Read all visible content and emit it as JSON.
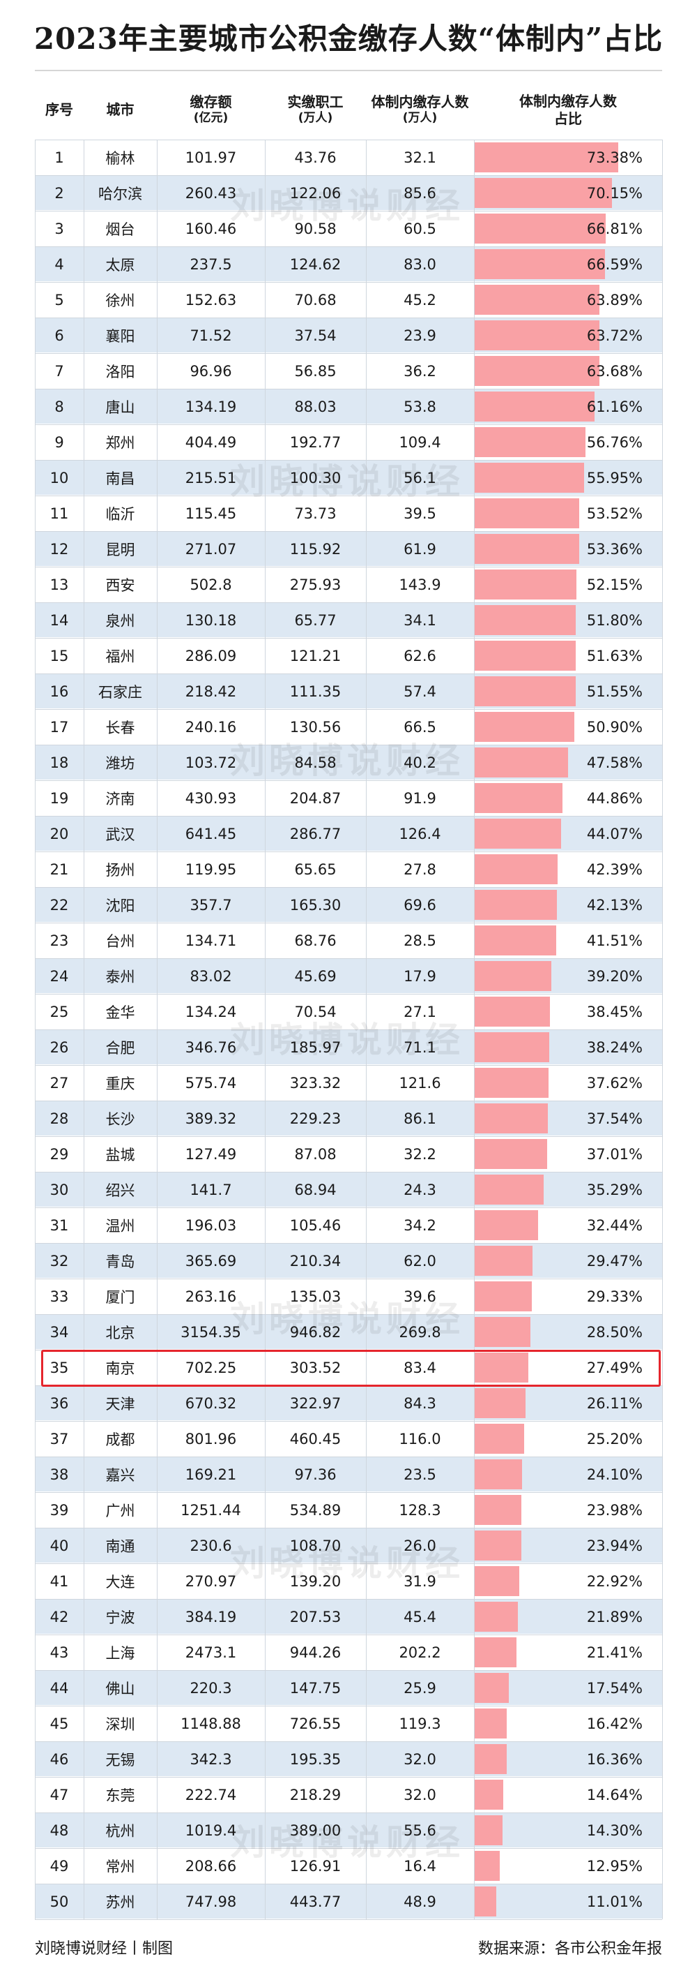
{
  "title": "2023年主要城市公积金缴存人数“体制内”占比",
  "watermark": "刘晓博说财经",
  "headers": {
    "no": "序号",
    "city": "城市",
    "deposit": "缴存额",
    "deposit_unit": "(亿元)",
    "employees": "实缴职工",
    "employees_unit": "(万人)",
    "count": "体制内缴存人数",
    "count_unit": "(万人)",
    "pct": "体制内缴存人数",
    "pct_line2": "占比"
  },
  "colors": {
    "bar": "#f9a1a5",
    "alt_row": "#dde8f3",
    "highlight": "#e5262d"
  },
  "highlight_rank": 35,
  "chart_data": {
    "type": "table",
    "title": "2023年主要城市公积金缴存人数“体制内”占比",
    "columns": [
      "序号",
      "城市",
      "缴存额(亿元)",
      "实缴职工(万人)",
      "体制内缴存人数(万人)",
      "体制内缴存人数占比"
    ],
    "bar_column": "体制内缴存人数占比",
    "rows": [
      {
        "no": "1",
        "city": "榆林",
        "deposit": "101.97",
        "employees": "43.76",
        "count": "32.1",
        "pct": "73.38%",
        "value": 73.38
      },
      {
        "no": "2",
        "city": "哈尔滨",
        "deposit": "260.43",
        "employees": "122.06",
        "count": "85.6",
        "pct": "70.15%",
        "value": 70.15
      },
      {
        "no": "3",
        "city": "烟台",
        "deposit": "160.46",
        "employees": "90.58",
        "count": "60.5",
        "pct": "66.81%",
        "value": 66.81
      },
      {
        "no": "4",
        "city": "太原",
        "deposit": "237.5",
        "employees": "124.62",
        "count": "83.0",
        "pct": "66.59%",
        "value": 66.59
      },
      {
        "no": "5",
        "city": "徐州",
        "deposit": "152.63",
        "employees": "70.68",
        "count": "45.2",
        "pct": "63.89%",
        "value": 63.89
      },
      {
        "no": "6",
        "city": "襄阳",
        "deposit": "71.52",
        "employees": "37.54",
        "count": "23.9",
        "pct": "63.72%",
        "value": 63.72
      },
      {
        "no": "7",
        "city": "洛阳",
        "deposit": "96.96",
        "employees": "56.85",
        "count": "36.2",
        "pct": "63.68%",
        "value": 63.68
      },
      {
        "no": "8",
        "city": "唐山",
        "deposit": "134.19",
        "employees": "88.03",
        "count": "53.8",
        "pct": "61.16%",
        "value": 61.16
      },
      {
        "no": "9",
        "city": "郑州",
        "deposit": "404.49",
        "employees": "192.77",
        "count": "109.4",
        "pct": "56.76%",
        "value": 56.76
      },
      {
        "no": "10",
        "city": "南昌",
        "deposit": "215.51",
        "employees": "100.30",
        "count": "56.1",
        "pct": "55.95%",
        "value": 55.95
      },
      {
        "no": "11",
        "city": "临沂",
        "deposit": "115.45",
        "employees": "73.73",
        "count": "39.5",
        "pct": "53.52%",
        "value": 53.52
      },
      {
        "no": "12",
        "city": "昆明",
        "deposit": "271.07",
        "employees": "115.92",
        "count": "61.9",
        "pct": "53.36%",
        "value": 53.36
      },
      {
        "no": "13",
        "city": "西安",
        "deposit": "502.8",
        "employees": "275.93",
        "count": "143.9",
        "pct": "52.15%",
        "value": 52.15
      },
      {
        "no": "14",
        "city": "泉州",
        "deposit": "130.18",
        "employees": "65.77",
        "count": "34.1",
        "pct": "51.80%",
        "value": 51.8
      },
      {
        "no": "15",
        "city": "福州",
        "deposit": "286.09",
        "employees": "121.21",
        "count": "62.6",
        "pct": "51.63%",
        "value": 51.63
      },
      {
        "no": "16",
        "city": "石家庄",
        "deposit": "218.42",
        "employees": "111.35",
        "count": "57.4",
        "pct": "51.55%",
        "value": 51.55
      },
      {
        "no": "17",
        "city": "长春",
        "deposit": "240.16",
        "employees": "130.56",
        "count": "66.5",
        "pct": "50.90%",
        "value": 50.9
      },
      {
        "no": "18",
        "city": "潍坊",
        "deposit": "103.72",
        "employees": "84.58",
        "count": "40.2",
        "pct": "47.58%",
        "value": 47.58
      },
      {
        "no": "19",
        "city": "济南",
        "deposit": "430.93",
        "employees": "204.87",
        "count": "91.9",
        "pct": "44.86%",
        "value": 44.86
      },
      {
        "no": "20",
        "city": "武汉",
        "deposit": "641.45",
        "employees": "286.77",
        "count": "126.4",
        "pct": "44.07%",
        "value": 44.07
      },
      {
        "no": "21",
        "city": "扬州",
        "deposit": "119.95",
        "employees": "65.65",
        "count": "27.8",
        "pct": "42.39%",
        "value": 42.39
      },
      {
        "no": "22",
        "city": "沈阳",
        "deposit": "357.7",
        "employees": "165.30",
        "count": "69.6",
        "pct": "42.13%",
        "value": 42.13
      },
      {
        "no": "23",
        "city": "台州",
        "deposit": "134.71",
        "employees": "68.76",
        "count": "28.5",
        "pct": "41.51%",
        "value": 41.51
      },
      {
        "no": "24",
        "city": "泰州",
        "deposit": "83.02",
        "employees": "45.69",
        "count": "17.9",
        "pct": "39.20%",
        "value": 39.2
      },
      {
        "no": "25",
        "city": "金华",
        "deposit": "134.24",
        "employees": "70.54",
        "count": "27.1",
        "pct": "38.45%",
        "value": 38.45
      },
      {
        "no": "26",
        "city": "合肥",
        "deposit": "346.76",
        "employees": "185.97",
        "count": "71.1",
        "pct": "38.24%",
        "value": 38.24
      },
      {
        "no": "27",
        "city": "重庆",
        "deposit": "575.74",
        "employees": "323.32",
        "count": "121.6",
        "pct": "37.62%",
        "value": 37.62
      },
      {
        "no": "28",
        "city": "长沙",
        "deposit": "389.32",
        "employees": "229.23",
        "count": "86.1",
        "pct": "37.54%",
        "value": 37.54
      },
      {
        "no": "29",
        "city": "盐城",
        "deposit": "127.49",
        "employees": "87.08",
        "count": "32.2",
        "pct": "37.01%",
        "value": 37.01
      },
      {
        "no": "30",
        "city": "绍兴",
        "deposit": "141.7",
        "employees": "68.94",
        "count": "24.3",
        "pct": "35.29%",
        "value": 35.29
      },
      {
        "no": "31",
        "city": "温州",
        "deposit": "196.03",
        "employees": "105.46",
        "count": "34.2",
        "pct": "32.44%",
        "value": 32.44
      },
      {
        "no": "32",
        "city": "青岛",
        "deposit": "365.69",
        "employees": "210.34",
        "count": "62.0",
        "pct": "29.47%",
        "value": 29.47
      },
      {
        "no": "33",
        "city": "厦门",
        "deposit": "263.16",
        "employees": "135.03",
        "count": "39.6",
        "pct": "29.33%",
        "value": 29.33
      },
      {
        "no": "34",
        "city": "北京",
        "deposit": "3154.35",
        "employees": "946.82",
        "count": "269.8",
        "pct": "28.50%",
        "value": 28.5
      },
      {
        "no": "35",
        "city": "南京",
        "deposit": "702.25",
        "employees": "303.52",
        "count": "83.4",
        "pct": "27.49%",
        "value": 27.49
      },
      {
        "no": "36",
        "city": "天津",
        "deposit": "670.32",
        "employees": "322.97",
        "count": "84.3",
        "pct": "26.11%",
        "value": 26.11
      },
      {
        "no": "37",
        "city": "成都",
        "deposit": "801.96",
        "employees": "460.45",
        "count": "116.0",
        "pct": "25.20%",
        "value": 25.2
      },
      {
        "no": "38",
        "city": "嘉兴",
        "deposit": "169.21",
        "employees": "97.36",
        "count": "23.5",
        "pct": "24.10%",
        "value": 24.1
      },
      {
        "no": "39",
        "city": "广州",
        "deposit": "1251.44",
        "employees": "534.89",
        "count": "128.3",
        "pct": "23.98%",
        "value": 23.98
      },
      {
        "no": "40",
        "city": "南通",
        "deposit": "230.6",
        "employees": "108.70",
        "count": "26.0",
        "pct": "23.94%",
        "value": 23.94
      },
      {
        "no": "41",
        "city": "大连",
        "deposit": "270.97",
        "employees": "139.20",
        "count": "31.9",
        "pct": "22.92%",
        "value": 22.92
      },
      {
        "no": "42",
        "city": "宁波",
        "deposit": "384.19",
        "employees": "207.53",
        "count": "45.4",
        "pct": "21.89%",
        "value": 21.89
      },
      {
        "no": "43",
        "city": "上海",
        "deposit": "2473.1",
        "employees": "944.26",
        "count": "202.2",
        "pct": "21.41%",
        "value": 21.41
      },
      {
        "no": "44",
        "city": "佛山",
        "deposit": "220.3",
        "employees": "147.75",
        "count": "25.9",
        "pct": "17.54%",
        "value": 17.54
      },
      {
        "no": "45",
        "city": "深圳",
        "deposit": "1148.88",
        "employees": "726.55",
        "count": "119.3",
        "pct": "16.42%",
        "value": 16.42
      },
      {
        "no": "46",
        "city": "无锡",
        "deposit": "342.3",
        "employees": "195.35",
        "count": "32.0",
        "pct": "16.36%",
        "value": 16.36
      },
      {
        "no": "47",
        "city": "东莞",
        "deposit": "222.74",
        "employees": "218.29",
        "count": "32.0",
        "pct": "14.64%",
        "value": 14.64
      },
      {
        "no": "48",
        "city": "杭州",
        "deposit": "1019.4",
        "employees": "389.00",
        "count": "55.6",
        "pct": "14.30%",
        "value": 14.3
      },
      {
        "no": "49",
        "city": "常州",
        "deposit": "208.66",
        "employees": "126.91",
        "count": "16.4",
        "pct": "12.95%",
        "value": 12.95
      },
      {
        "no": "50",
        "city": "苏州",
        "deposit": "747.98",
        "employees": "443.77",
        "count": "48.9",
        "pct": "11.01%",
        "value": 11.01
      }
    ]
  },
  "footer": {
    "left": "刘晓博说财经丨制图",
    "right": "数据来源：各市公积金年报"
  }
}
